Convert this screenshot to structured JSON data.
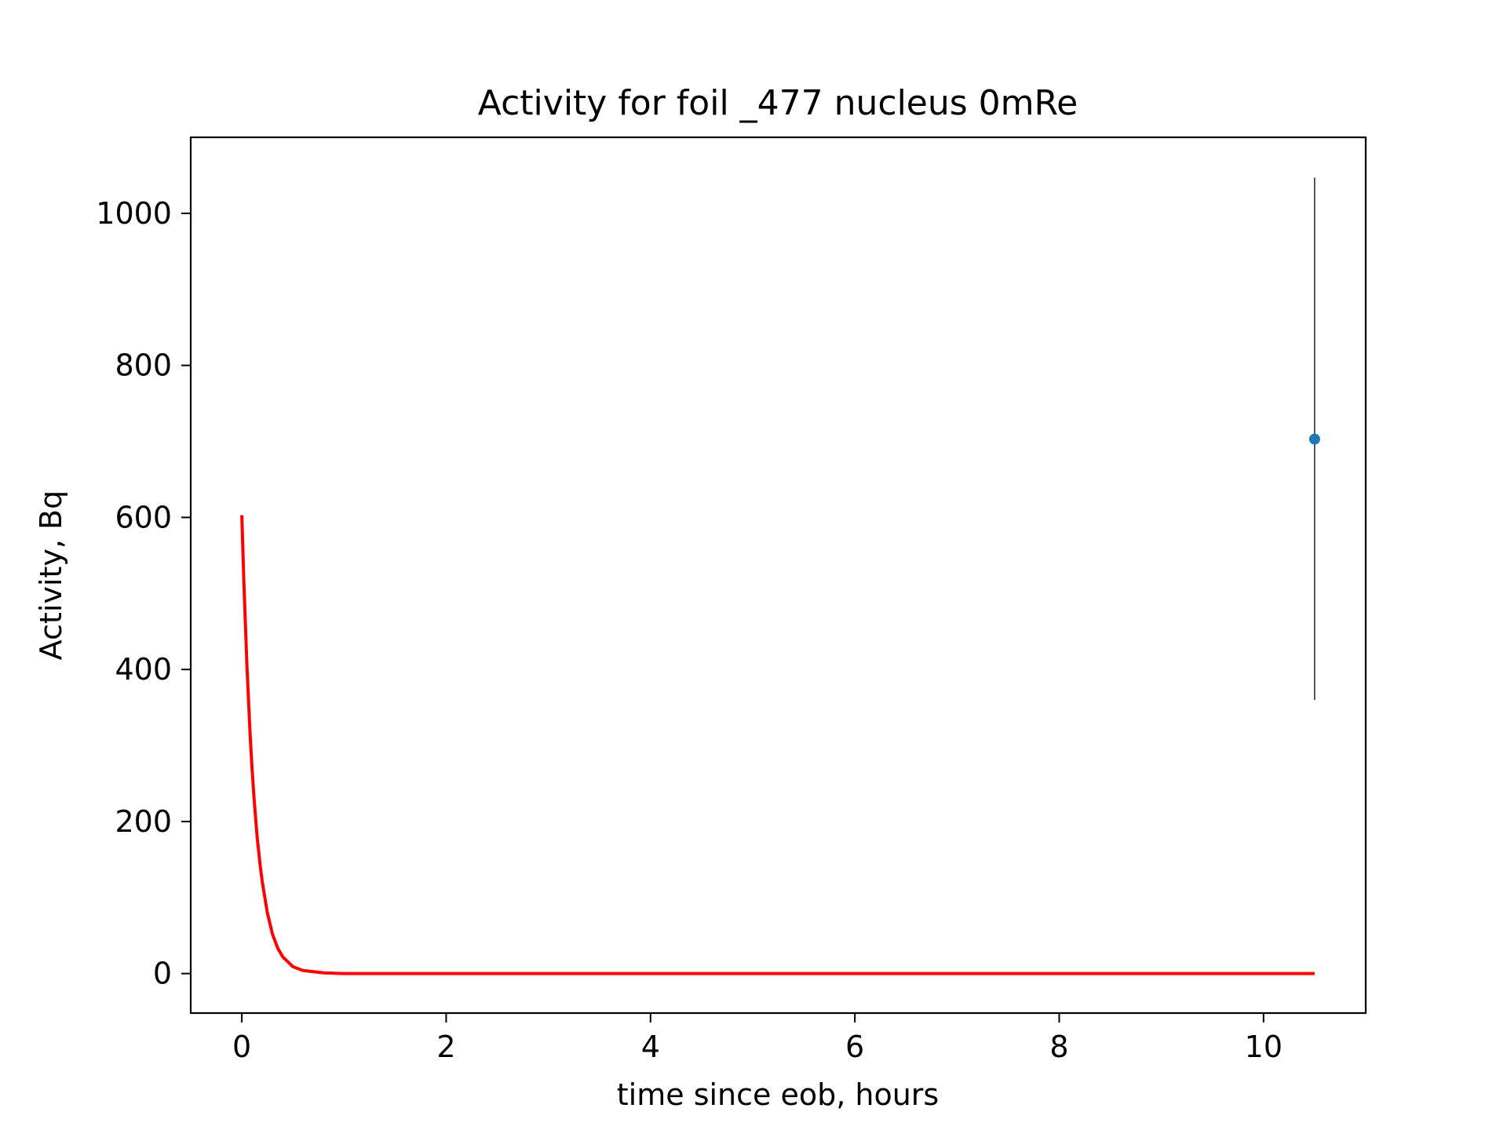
{
  "chart_data": {
    "type": "line",
    "title": "Activity for foil _477 nucleus 0mRe",
    "xlabel": "time since eob, hours",
    "ylabel": "Activity, Bq",
    "xlim": [
      -0.5,
      11.0
    ],
    "ylim": [
      -52,
      1100
    ],
    "xticks": [
      0,
      2,
      4,
      6,
      8,
      10
    ],
    "yticks": [
      0,
      200,
      400,
      600,
      800,
      1000
    ],
    "grid": false,
    "fit_curve": {
      "color": "#ff0000",
      "x": [
        0,
        0.02,
        0.05,
        0.08,
        0.1,
        0.12,
        0.15,
        0.18,
        0.2,
        0.25,
        0.3,
        0.35,
        0.4,
        0.5,
        0.6,
        0.8,
        1.0,
        10.5
      ],
      "values": [
        603,
        515,
        405,
        318,
        270,
        230,
        180,
        142,
        121,
        80,
        52,
        34,
        22,
        9,
        4,
        1,
        0,
        0
      ]
    },
    "measurements": [
      {
        "x": 10.5,
        "y": 703,
        "y_err_low": 360,
        "y_err_high": 1047,
        "marker_color": "#1f77b4",
        "errorbar_color": "#000000"
      }
    ]
  }
}
